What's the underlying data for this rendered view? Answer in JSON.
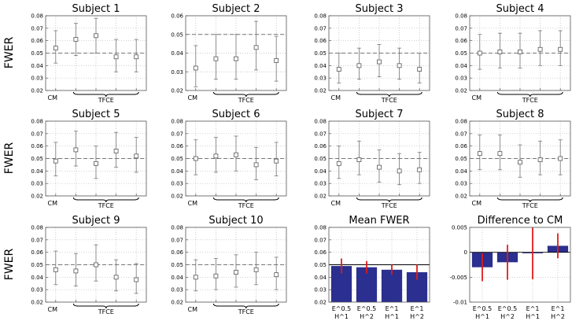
{
  "figure": {
    "ylabel": "FWER"
  },
  "chart_data": [
    {
      "type": "scatter",
      "title": "Subject 1",
      "ylabel": "FWER",
      "ylim": [
        0.02,
        0.08
      ],
      "yticks": [
        "0.02",
        "0.03",
        "0.04",
        "0.05",
        "0.06",
        "0.07",
        "0.08"
      ],
      "reference_line": 0.05,
      "x_labels": {
        "cm": "CM",
        "group": "TFCE"
      },
      "points": [
        {
          "value": 0.054,
          "lower": 0.042,
          "upper": 0.068
        },
        {
          "value": 0.061,
          "lower": 0.048,
          "upper": 0.074
        },
        {
          "value": 0.064,
          "lower": 0.05,
          "upper": 0.078
        },
        {
          "value": 0.047,
          "lower": 0.035,
          "upper": 0.061
        },
        {
          "value": 0.047,
          "lower": 0.035,
          "upper": 0.061
        }
      ]
    },
    {
      "type": "scatter",
      "title": "Subject 2",
      "ylabel": "FWER",
      "ylim": [
        0.02,
        0.06
      ],
      "yticks": [
        "0.02",
        "0.03",
        "0.04",
        "0.05",
        "0.06"
      ],
      "reference_line": 0.05,
      "x_labels": {
        "cm": "CM",
        "group": "TFCE"
      },
      "points": [
        {
          "value": 0.032,
          "lower": 0.022,
          "upper": 0.044
        },
        {
          "value": 0.037,
          "lower": 0.026,
          "upper": 0.05
        },
        {
          "value": 0.037,
          "lower": 0.026,
          "upper": 0.05
        },
        {
          "value": 0.043,
          "lower": 0.031,
          "upper": 0.057
        },
        {
          "value": 0.036,
          "lower": 0.025,
          "upper": 0.049
        }
      ]
    },
    {
      "type": "scatter",
      "title": "Subject 3",
      "ylabel": "FWER",
      "ylim": [
        0.02,
        0.08
      ],
      "yticks": [
        "0.02",
        "0.03",
        "0.04",
        "0.05",
        "0.06",
        "0.07",
        "0.08"
      ],
      "reference_line": 0.05,
      "x_labels": {
        "cm": "CM",
        "group": "TFCE"
      },
      "points": [
        {
          "value": 0.037,
          "lower": 0.026,
          "upper": 0.05
        },
        {
          "value": 0.04,
          "lower": 0.029,
          "upper": 0.054
        },
        {
          "value": 0.043,
          "lower": 0.031,
          "upper": 0.057
        },
        {
          "value": 0.04,
          "lower": 0.029,
          "upper": 0.054
        },
        {
          "value": 0.037,
          "lower": 0.026,
          "upper": 0.05
        }
      ]
    },
    {
      "type": "scatter",
      "title": "Subject 4",
      "ylabel": "FWER",
      "ylim": [
        0.02,
        0.08
      ],
      "yticks": [
        "0.02",
        "0.03",
        "0.04",
        "0.05",
        "0.06",
        "0.07",
        "0.08"
      ],
      "reference_line": 0.05,
      "x_labels": {
        "cm": "CM",
        "group": "TFCE"
      },
      "points": [
        {
          "value": 0.05,
          "lower": 0.037,
          "upper": 0.065
        },
        {
          "value": 0.051,
          "lower": 0.038,
          "upper": 0.066
        },
        {
          "value": 0.051,
          "lower": 0.038,
          "upper": 0.066
        },
        {
          "value": 0.053,
          "lower": 0.04,
          "upper": 0.068
        },
        {
          "value": 0.053,
          "lower": 0.04,
          "upper": 0.068
        }
      ]
    },
    {
      "type": "scatter",
      "title": "Subject 5",
      "ylabel": "FWER",
      "ylim": [
        0.02,
        0.08
      ],
      "yticks": [
        "0.02",
        "0.03",
        "0.04",
        "0.05",
        "0.06",
        "0.07",
        "0.08"
      ],
      "reference_line": 0.05,
      "x_labels": {
        "cm": "CM",
        "group": "TFCE"
      },
      "points": [
        {
          "value": 0.048,
          "lower": 0.036,
          "upper": 0.063
        },
        {
          "value": 0.057,
          "lower": 0.044,
          "upper": 0.072
        },
        {
          "value": 0.046,
          "lower": 0.034,
          "upper": 0.06
        },
        {
          "value": 0.056,
          "lower": 0.043,
          "upper": 0.071
        },
        {
          "value": 0.052,
          "lower": 0.039,
          "upper": 0.067
        }
      ]
    },
    {
      "type": "scatter",
      "title": "Subject 6",
      "ylabel": "FWER",
      "ylim": [
        0.02,
        0.08
      ],
      "yticks": [
        "0.02",
        "0.03",
        "0.04",
        "0.05",
        "0.06",
        "0.07",
        "0.08"
      ],
      "reference_line": 0.05,
      "x_labels": {
        "cm": "CM",
        "group": "TFCE"
      },
      "points": [
        {
          "value": 0.05,
          "lower": 0.037,
          "upper": 0.065
        },
        {
          "value": 0.052,
          "lower": 0.039,
          "upper": 0.067
        },
        {
          "value": 0.053,
          "lower": 0.04,
          "upper": 0.068
        },
        {
          "value": 0.045,
          "lower": 0.033,
          "upper": 0.059
        },
        {
          "value": 0.048,
          "lower": 0.036,
          "upper": 0.063
        }
      ]
    },
    {
      "type": "scatter",
      "title": "Subject 7",
      "ylabel": "FWER",
      "ylim": [
        0.02,
        0.08
      ],
      "yticks": [
        "0.02",
        "0.03",
        "0.04",
        "0.05",
        "0.06",
        "0.07",
        "0.08"
      ],
      "reference_line": 0.05,
      "x_labels": {
        "cm": "CM",
        "group": "TFCE"
      },
      "points": [
        {
          "value": 0.046,
          "lower": 0.034,
          "upper": 0.06
        },
        {
          "value": 0.049,
          "lower": 0.037,
          "upper": 0.064
        },
        {
          "value": 0.043,
          "lower": 0.031,
          "upper": 0.057
        },
        {
          "value": 0.04,
          "lower": 0.029,
          "upper": 0.054
        },
        {
          "value": 0.041,
          "lower": 0.03,
          "upper": 0.055
        }
      ]
    },
    {
      "type": "scatter",
      "title": "Subject 8",
      "ylabel": "FWER",
      "ylim": [
        0.02,
        0.08
      ],
      "yticks": [
        "0.02",
        "0.03",
        "0.04",
        "0.05",
        "0.06",
        "0.07",
        "0.08"
      ],
      "reference_line": 0.05,
      "x_labels": {
        "cm": "CM",
        "group": "TFCE"
      },
      "points": [
        {
          "value": 0.054,
          "lower": 0.041,
          "upper": 0.069
        },
        {
          "value": 0.054,
          "lower": 0.041,
          "upper": 0.069
        },
        {
          "value": 0.047,
          "lower": 0.035,
          "upper": 0.061
        },
        {
          "value": 0.049,
          "lower": 0.037,
          "upper": 0.064
        },
        {
          "value": 0.05,
          "lower": 0.037,
          "upper": 0.065
        }
      ]
    },
    {
      "type": "scatter",
      "title": "Subject 9",
      "ylabel": "FWER",
      "ylim": [
        0.02,
        0.08
      ],
      "yticks": [
        "0.02",
        "0.03",
        "0.04",
        "0.05",
        "0.06",
        "0.07",
        "0.08"
      ],
      "reference_line": 0.05,
      "x_labels": {
        "cm": "CM",
        "group": "TFCE"
      },
      "points": [
        {
          "value": 0.046,
          "lower": 0.034,
          "upper": 0.061
        },
        {
          "value": 0.045,
          "lower": 0.033,
          "upper": 0.059
        },
        {
          "value": 0.05,
          "lower": 0.037,
          "upper": 0.066
        },
        {
          "value": 0.04,
          "lower": 0.029,
          "upper": 0.054
        },
        {
          "value": 0.038,
          "lower": 0.027,
          "upper": 0.051
        }
      ]
    },
    {
      "type": "scatter",
      "title": "Subject 10",
      "ylabel": "FWER",
      "ylim": [
        0.02,
        0.08
      ],
      "yticks": [
        "0.02",
        "0.03",
        "0.04",
        "0.05",
        "0.06",
        "0.07",
        "0.08"
      ],
      "reference_line": 0.05,
      "x_labels": {
        "cm": "CM",
        "group": "TFCE"
      },
      "points": [
        {
          "value": 0.04,
          "lower": 0.029,
          "upper": 0.054
        },
        {
          "value": 0.041,
          "lower": 0.03,
          "upper": 0.055
        },
        {
          "value": 0.044,
          "lower": 0.032,
          "upper": 0.058
        },
        {
          "value": 0.046,
          "lower": 0.034,
          "upper": 0.06
        },
        {
          "value": 0.042,
          "lower": 0.03,
          "upper": 0.056
        }
      ]
    },
    {
      "type": "bar",
      "title": "Mean FWER",
      "ylim": [
        0.02,
        0.08
      ],
      "yticks": [
        "0.02",
        "0.03",
        "0.04",
        "0.05",
        "0.06",
        "0.07",
        "0.08"
      ],
      "reference_line": 0.05,
      "categories": [
        [
          "E^0.5",
          "H^1"
        ],
        [
          "E^0.5",
          "H^2"
        ],
        [
          "E^1",
          "H^1"
        ],
        [
          "E^1",
          "H^2"
        ]
      ],
      "values": [
        0.049,
        0.048,
        0.046,
        0.044
      ],
      "errors": [
        0.006,
        0.005,
        0.004,
        0.006
      ],
      "bar_color": "#2b2f8f",
      "error_color": "#e01b1b"
    },
    {
      "type": "bar",
      "title": "Difference to CM",
      "ylim": [
        -0.01,
        0.005
      ],
      "yticks": [
        "-0.01",
        "-0.005",
        "0",
        "0.005"
      ],
      "reference_line": 0,
      "categories": [
        [
          "E^0.5",
          "H^1"
        ],
        [
          "E^0.5",
          "H^2"
        ],
        [
          "E^1",
          "H^1"
        ],
        [
          "E^1",
          "H^2"
        ]
      ],
      "values": [
        -0.003,
        -0.002,
        -0.0002,
        0.0013
      ],
      "errors": [
        0.0028,
        0.0035,
        0.0052,
        0.0025
      ],
      "bar_color": "#2b2f8f",
      "error_color": "#e01b1b"
    }
  ]
}
